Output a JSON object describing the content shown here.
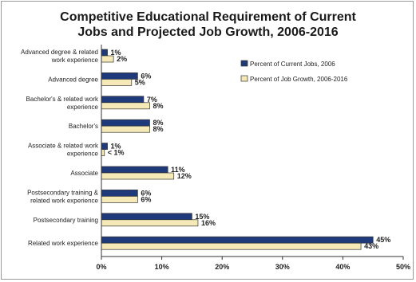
{
  "chart_data": {
    "type": "bar",
    "orientation": "horizontal",
    "title_lines": [
      "Competitive Educational Requirement of Current",
      "Jobs and Projected Job Growth, 2006-2016"
    ],
    "categories": [
      [
        "Advanced degree & related",
        "work experience"
      ],
      [
        "Advanced degree"
      ],
      [
        "Bachelor's & related work",
        "experience"
      ],
      [
        "Bachelor's"
      ],
      [
        "Associate & related work",
        "experience"
      ],
      [
        "Associate"
      ],
      [
        "Postsecondary training &",
        "related work experience"
      ],
      [
        "Postsecondary training"
      ],
      [
        "Related work experience"
      ]
    ],
    "series": [
      {
        "name": "Percent of Current Jobs, 2006",
        "color": "#1f3a7a",
        "values": [
          1,
          6,
          7,
          8,
          1,
          11,
          6,
          15,
          45
        ],
        "labels": [
          "1%",
          "6%",
          "7%",
          "8%",
          "1%",
          "11%",
          "6%",
          "15%",
          "45%"
        ]
      },
      {
        "name": "Percent of Job Growth, 2006-2016",
        "color": "#f5e9b8",
        "values": [
          2,
          5,
          8,
          8,
          0.5,
          12,
          6,
          16,
          43
        ],
        "labels": [
          "2%",
          "5%",
          "8%",
          "8%",
          "< 1%",
          "12%",
          "6%",
          "16%",
          "43%"
        ]
      }
    ],
    "xlim": [
      0,
      50
    ],
    "xticks": [
      0,
      10,
      20,
      30,
      40,
      50
    ],
    "xtick_labels": [
      "0%",
      "10%",
      "20%",
      "30%",
      "40%",
      "50%"
    ],
    "grid": false,
    "legend_position": "right"
  }
}
